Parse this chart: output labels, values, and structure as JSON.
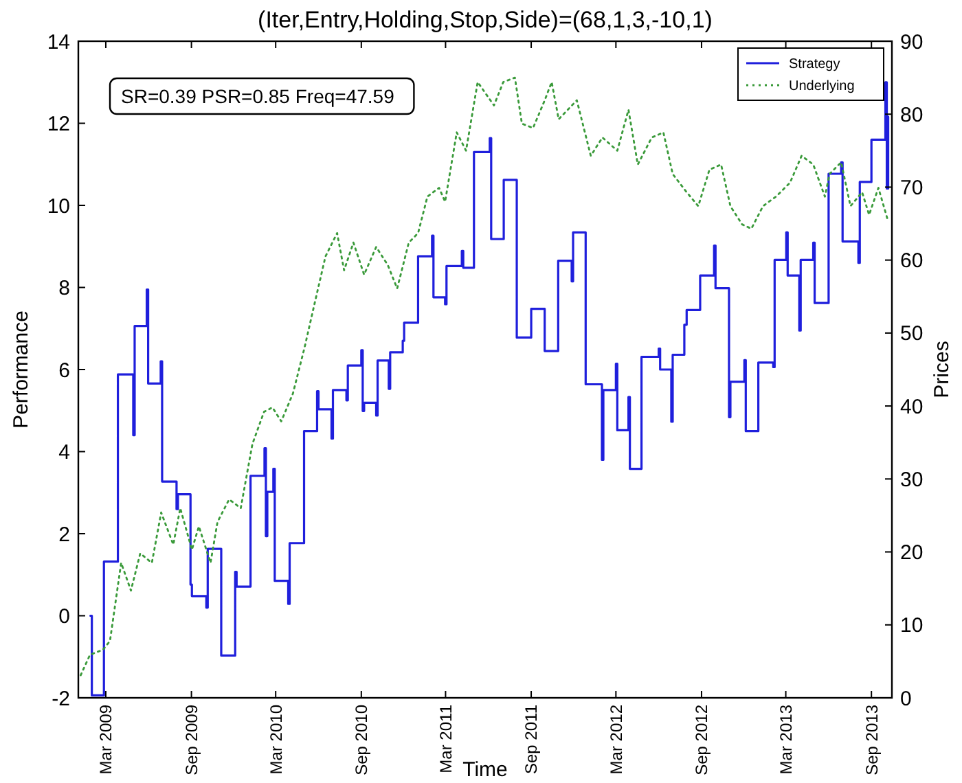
{
  "chart_data": {
    "type": "line",
    "title": "(Iter,Entry,Holding,Stop,Side)=(68,1,3,-10,1)",
    "xlabel": "Time",
    "ylabel": "Performance",
    "y2label": "Prices",
    "annotations": [
      "SR=0.39 PSR=0.85 Freq=47.59"
    ],
    "xlim": [
      "2009-01-01",
      "2013-10-15"
    ],
    "xticks": [
      {
        "value": "2009-03-01",
        "label": "Mar 2009"
      },
      {
        "value": "2009-09-01",
        "label": "Sep 2009"
      },
      {
        "value": "2010-03-01",
        "label": "Mar 2010"
      },
      {
        "value": "2010-09-01",
        "label": "Sep 2010"
      },
      {
        "value": "2011-03-01",
        "label": "Mar 2011"
      },
      {
        "value": "2011-09-01",
        "label": "Sep 2011"
      },
      {
        "value": "2012-03-01",
        "label": "Mar 2012"
      },
      {
        "value": "2012-09-01",
        "label": "Sep 2012"
      },
      {
        "value": "2013-03-01",
        "label": "Mar 2013"
      },
      {
        "value": "2013-09-01",
        "label": "Sep 2013"
      }
    ],
    "ylim": [
      -2,
      14
    ],
    "yticks": [
      -2,
      0,
      2,
      4,
      6,
      8,
      10,
      12,
      14
    ],
    "y2lim": [
      0,
      90
    ],
    "y2ticks": [
      0,
      10,
      20,
      30,
      40,
      50,
      60,
      70,
      80,
      90
    ],
    "legend": "top right",
    "grid": false,
    "series": [
      {
        "name": "Strategy",
        "type": "step",
        "color": "#1f1fdc",
        "line_style": "solid",
        "x": [
          "2009-01-27",
          "2009-01-30",
          "2009-02-25",
          "2009-03-27",
          "2009-04-29",
          "2009-05-02",
          "2009-05-28",
          "2009-05-31",
          "2009-06-27",
          "2009-06-30",
          "2009-07-31",
          "2009-08-03",
          "2009-08-30",
          "2009-09-02",
          "2009-10-03",
          "2009-10-06",
          "2009-11-04",
          "2009-12-04",
          "2009-12-07",
          "2010-01-06",
          "2010-02-05",
          "2010-02-08",
          "2010-02-11",
          "2010-02-24",
          "2010-02-27",
          "2010-03-28",
          "2010-03-31",
          "2010-05-01",
          "2010-05-29",
          "2010-06-01",
          "2010-06-29",
          "2010-07-02",
          "2010-07-31",
          "2010-08-03",
          "2010-09-01",
          "2010-09-04",
          "2010-09-07",
          "2010-10-03",
          "2010-10-06",
          "2010-10-30",
          "2010-11-02",
          "2010-11-29",
          "2010-12-02",
          "2011-01-01",
          "2011-01-31",
          "2011-02-03",
          "2011-02-28",
          "2011-03-03",
          "2011-04-05",
          "2011-04-08",
          "2011-05-01",
          "2011-06-04",
          "2011-06-07",
          "2011-07-04",
          "2011-08-01",
          "2011-09-01",
          "2011-09-30",
          "2011-10-29",
          "2011-11-27",
          "2011-11-30",
          "2011-12-27",
          "2012-01-31",
          "2012-02-03",
          "2012-03-01",
          "2012-03-04",
          "2012-03-28",
          "2012-03-31",
          "2012-04-25",
          "2012-06-01",
          "2012-06-04",
          "2012-06-28",
          "2012-07-01",
          "2012-07-26",
          "2012-07-31",
          "2012-08-29",
          "2012-09-28",
          "2012-10-01",
          "2012-10-30",
          "2012-11-02",
          "2012-12-02",
          "2012-12-05",
          "2013-01-01",
          "2013-02-02",
          "2013-02-05",
          "2013-03-02",
          "2013-03-05",
          "2013-03-30",
          "2013-04-02",
          "2013-04-29",
          "2013-05-02",
          "2013-06-01",
          "2013-06-28",
          "2013-07-01",
          "2013-08-04",
          "2013-08-07",
          "2013-09-01",
          "2013-10-01",
          "2013-10-04",
          "2013-10-07"
        ],
        "values": [
          0.0,
          -1.94,
          1.32,
          5.88,
          4.4,
          7.06,
          7.95,
          5.66,
          6.2,
          3.27,
          2.6,
          2.96,
          0.76,
          0.48,
          0.2,
          1.63,
          -0.97,
          1.07,
          0.71,
          3.41,
          4.08,
          1.94,
          3.02,
          3.58,
          0.85,
          0.29,
          1.77,
          4.5,
          5.47,
          5.03,
          4.32,
          5.5,
          5.25,
          6.1,
          6.47,
          4.99,
          5.19,
          4.88,
          6.22,
          5.53,
          6.42,
          6.7,
          7.14,
          8.76,
          9.26,
          7.76,
          7.59,
          8.52,
          8.89,
          8.48,
          11.3,
          11.64,
          9.18,
          10.62,
          6.78,
          7.48,
          6.45,
          8.65,
          8.15,
          9.34,
          5.64,
          3.8,
          5.5,
          6.14,
          4.52,
          5.33,
          3.58,
          6.31,
          6.51,
          6.0,
          4.73,
          6.36,
          7.09,
          7.45,
          8.29,
          9.02,
          7.98,
          4.84,
          5.7,
          6.23,
          4.5,
          6.17,
          6.06,
          8.67,
          9.34,
          8.29,
          6.95,
          8.67,
          9.09,
          7.62,
          10.77,
          11.05,
          9.12,
          8.6,
          10.57,
          11.6,
          13.0,
          10.41,
          12.16
        ]
      },
      {
        "name": "Underlying",
        "axis": "y2",
        "color": "#3a9a3a",
        "line_style": "dotted",
        "x": [
          "2009-01-06",
          "2009-01-26",
          "2009-02-23",
          "2009-03-10",
          "2009-04-03",
          "2009-04-24",
          "2009-05-14",
          "2009-06-08",
          "2009-06-28",
          "2009-07-24",
          "2009-08-08",
          "2009-09-02",
          "2009-09-17",
          "2009-10-12",
          "2009-10-27",
          "2009-11-21",
          "2009-12-16",
          "2010-01-10",
          "2010-02-04",
          "2010-02-22",
          "2010-03-13",
          "2010-04-07",
          "2010-05-02",
          "2010-05-22",
          "2010-06-16",
          "2010-07-11",
          "2010-07-26",
          "2010-08-15",
          "2010-09-07",
          "2010-10-03",
          "2010-10-28",
          "2010-11-17",
          "2010-12-12",
          "2011-01-01",
          "2011-01-21",
          "2011-02-15",
          "2011-02-28",
          "2011-03-25",
          "2011-04-14",
          "2011-05-09",
          "2011-06-13",
          "2011-07-03",
          "2011-07-28",
          "2011-08-12",
          "2011-09-05",
          "2011-09-30",
          "2011-10-15",
          "2011-10-30",
          "2011-12-08",
          "2012-01-07",
          "2012-02-01",
          "2012-03-04",
          "2012-03-28",
          "2012-04-17",
          "2012-05-17",
          "2012-06-11",
          "2012-07-01",
          "2012-07-31",
          "2012-08-25",
          "2012-09-18",
          "2012-10-13",
          "2012-11-02",
          "2012-11-27",
          "2012-12-17",
          "2013-01-11",
          "2013-02-08",
          "2013-03-10",
          "2013-04-04",
          "2013-04-29",
          "2013-05-24",
          "2013-06-03",
          "2013-06-28",
          "2013-07-18",
          "2013-08-12",
          "2013-08-27",
          "2013-09-16",
          "2013-10-06"
        ],
        "values": [
          3.1,
          5.9,
          6.6,
          7.8,
          18.5,
          14.7,
          19.8,
          18.5,
          25.4,
          21,
          26,
          20.3,
          23.5,
          18.5,
          24.1,
          27.2,
          26,
          34.8,
          39.2,
          39.8,
          37.9,
          41.7,
          48,
          53.6,
          60.5,
          63.7,
          58.6,
          62.4,
          58,
          61.8,
          59.3,
          56.1,
          62.4,
          63.7,
          68.7,
          69.9,
          68,
          77.5,
          75,
          84.4,
          81.2,
          84.4,
          85,
          78.7,
          78.1,
          81.9,
          84.4,
          79.3,
          81.9,
          74.3,
          76.8,
          75,
          80.6,
          73.1,
          76.8,
          77.5,
          71.8,
          69.3,
          67.4,
          72.4,
          73.1,
          67.4,
          64.9,
          64.3,
          67.4,
          68.7,
          70.6,
          74.3,
          73.1,
          68.7,
          71.8,
          73.4,
          67.4,
          69.3,
          66.2,
          69.9,
          65.5
        ]
      }
    ]
  }
}
